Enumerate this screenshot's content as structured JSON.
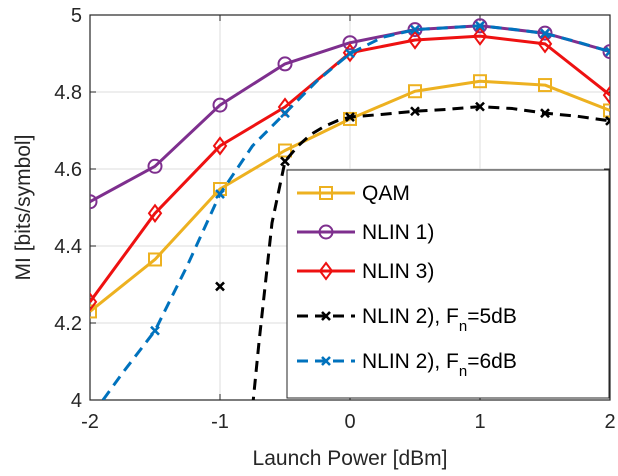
{
  "chart_data": {
    "type": "line",
    "xlabel": "Launch Power [dBm]",
    "ylabel": "MI [bits/symbol]",
    "xlim": [
      -2,
      2
    ],
    "ylim": [
      4,
      5
    ],
    "xticks": [
      -2,
      -1,
      0,
      1,
      2
    ],
    "yticks": [
      4,
      4.2,
      4.4,
      4.6,
      4.8,
      5
    ],
    "xtick_labels": [
      "-2",
      "-1",
      "0",
      "1",
      "2"
    ],
    "ytick_labels": [
      "4",
      "4.2",
      "4.4",
      "4.6",
      "4.8",
      "5"
    ],
    "grid": true,
    "legend_position": "bottom-right",
    "series": [
      {
        "name": "QAM",
        "color": "#EDB120",
        "marker": "square",
        "line": "solid",
        "x": [
          -2,
          -1.5,
          -1,
          -0.5,
          0,
          0.5,
          1,
          1.5,
          2
        ],
        "values": [
          4.23,
          4.365,
          4.548,
          4.648,
          4.73,
          4.802,
          4.828,
          4.818,
          4.752
        ]
      },
      {
        "name": "NLIN 1)",
        "color": "#7E2F8E",
        "marker": "circle",
        "line": "solid",
        "x": [
          -2,
          -1.5,
          -1,
          -0.5,
          0,
          0.5,
          1,
          1.5,
          2
        ],
        "values": [
          4.515,
          4.607,
          4.766,
          4.873,
          4.928,
          4.962,
          4.972,
          4.953,
          4.905
        ]
      },
      {
        "name": "NLIN 3)",
        "color": "#EE1111",
        "marker": "diamond",
        "line": "solid",
        "x": [
          -2,
          -1.5,
          -1,
          -0.5,
          0,
          0.5,
          1,
          1.5,
          2
        ],
        "values": [
          4.255,
          4.485,
          4.66,
          4.761,
          4.902,
          4.935,
          4.945,
          4.925,
          4.792
        ]
      },
      {
        "name_main": "NLIN 2), F",
        "name_sub": "n",
        "name_tail": "=5dB",
        "color": "#000000",
        "marker": "x",
        "line": "dashed",
        "curve_x": [
          -0.75,
          -0.7,
          -0.6,
          -0.5,
          -0.4,
          -0.3,
          -0.2,
          -0.1,
          0,
          0.25,
          0.5,
          0.75,
          1,
          1.25,
          1.5,
          1.75,
          2
        ],
        "curve_y": [
          3.98,
          4.15,
          4.46,
          4.62,
          4.66,
          4.69,
          4.71,
          4.725,
          4.735,
          4.742,
          4.75,
          4.755,
          4.762,
          4.757,
          4.745,
          4.737,
          4.725
        ],
        "marker_x": [
          -1,
          -0.5,
          0,
          0.5,
          1,
          1.5,
          2
        ],
        "marker_y": [
          4.295,
          4.62,
          4.735,
          4.75,
          4.762,
          4.745,
          4.725
        ]
      },
      {
        "name_main": "NLIN 2), F",
        "name_sub": "n",
        "name_tail": "=6dB",
        "color": "#0072BD",
        "marker": "x",
        "line": "dashed",
        "curve_x": [
          -1.9,
          -1.75,
          -1.5,
          -1.25,
          -1,
          -0.75,
          -0.5,
          -0.25,
          0,
          0.25,
          0.5,
          0.75,
          1,
          1.25,
          1.5,
          1.75,
          2
        ],
        "curve_y": [
          4.0,
          4.07,
          4.18,
          4.35,
          4.535,
          4.66,
          4.745,
          4.83,
          4.9,
          4.942,
          4.962,
          4.967,
          4.972,
          4.963,
          4.952,
          4.93,
          4.905
        ],
        "marker_x": [
          -1.5,
          -1,
          -0.5,
          0,
          0.5,
          1,
          1.5,
          2
        ],
        "marker_y": [
          4.18,
          4.535,
          4.745,
          4.9,
          4.962,
          4.972,
          4.952,
          4.905
        ]
      }
    ]
  }
}
